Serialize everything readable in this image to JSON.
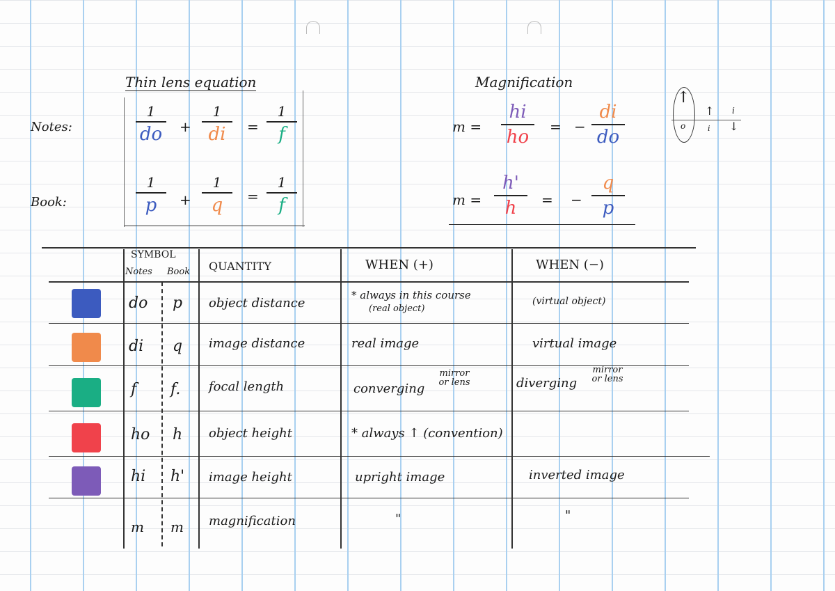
{
  "colors": {
    "do": "#3c5bbf",
    "di": "#f08a4b",
    "f": "#1aae84",
    "ho": "#f0424b",
    "hi": "#7d5bb8"
  },
  "thin_lens": {
    "title": "Thin lens equation",
    "notes_label": "Notes:",
    "book_label": "Book:",
    "notes": {
      "one": "1",
      "do": "do",
      "di": "di",
      "f": "f",
      "plus": "+",
      "eq": "="
    },
    "book": {
      "one": "1",
      "p": "p",
      "q": "q",
      "f": "f",
      "plus": "+",
      "eq": "="
    }
  },
  "magnification": {
    "title": "Magnification",
    "row1": {
      "m": "m =",
      "num": "hi",
      "den": "ho",
      "eq": "=",
      "minus": "−",
      "num2": "di",
      "den2": "do"
    },
    "row2": {
      "m": "m =",
      "num": "h'",
      "den": "h",
      "eq": "=",
      "minus": "−",
      "num2": "q",
      "den2": "p"
    }
  },
  "sketch": {
    "o": "o",
    "i1": "i",
    "i2": "i"
  },
  "table": {
    "headers": {
      "symbol": "SYMBOL",
      "notes": "Notes",
      "book": "Book",
      "quantity": "QUANTITY",
      "when_pos": "WHEN (+)",
      "when_neg": "WHEN (−)"
    },
    "rows": [
      {
        "color": "blue",
        "notes": "do",
        "book": "p",
        "quantity": "object distance",
        "pos": "* always in this course",
        "pos_sub": "(real object)",
        "neg": "(virtual object)"
      },
      {
        "color": "orange",
        "notes": "di",
        "book": "q",
        "quantity": "image distance",
        "pos": "real image",
        "neg": "virtual image"
      },
      {
        "color": "green",
        "notes": "f",
        "book": "f.",
        "quantity": "focal length",
        "pos": "converging",
        "pos_sub": "mirror or lens",
        "neg": "diverging",
        "neg_sub": "mirror or lens"
      },
      {
        "color": "red",
        "notes": "ho",
        "book": "h",
        "quantity": "object height",
        "pos": "* always ↑ (convention)",
        "neg": ""
      },
      {
        "color": "purple",
        "notes": "hi",
        "book": "h'",
        "quantity": "image height",
        "pos": "upright image",
        "neg": "inverted image"
      },
      {
        "color": "",
        "notes": "m",
        "book": "m",
        "quantity": "magnification",
        "pos": "\"",
        "neg": "\""
      }
    ]
  }
}
